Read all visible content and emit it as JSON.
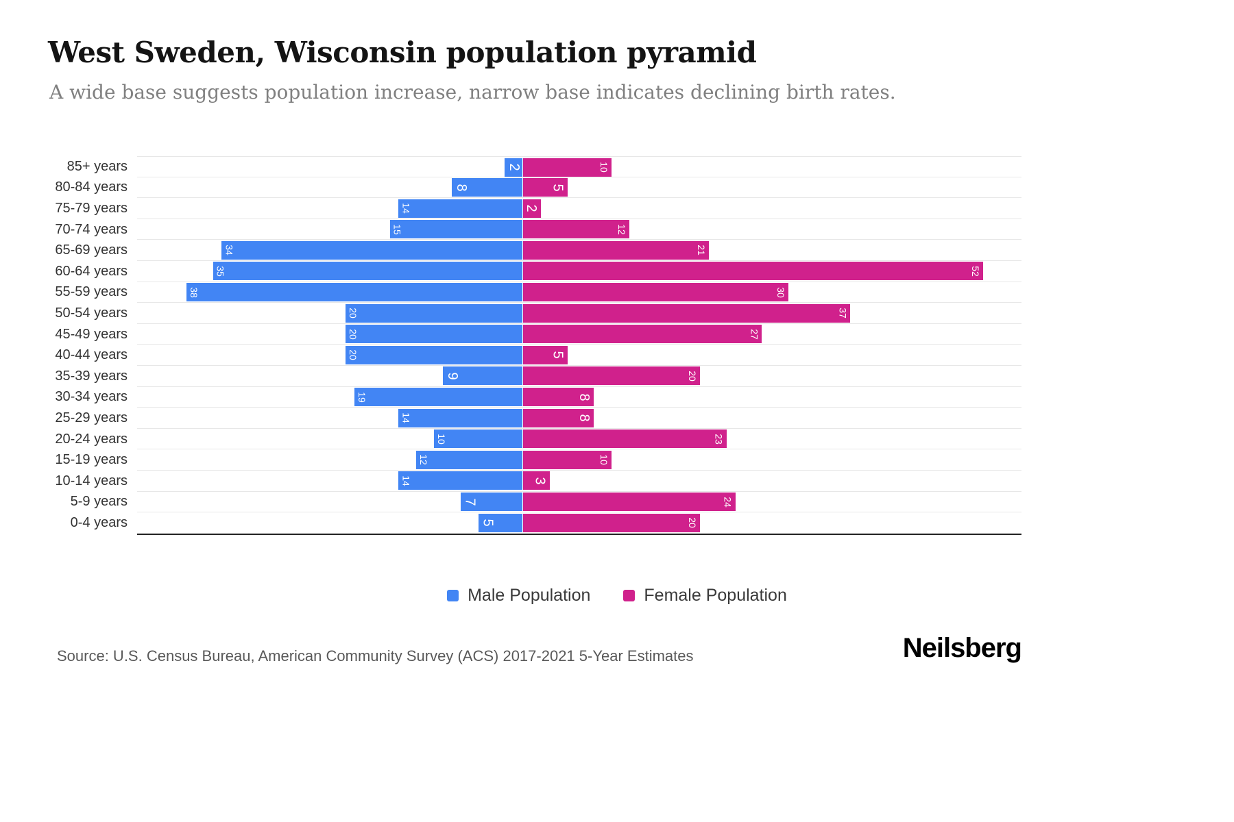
{
  "title": "West Sweden, Wisconsin population pyramid",
  "subtitle": "A wide base suggests population increase, narrow base indicates declining birth rates.",
  "source": "Source: U.S. Census Bureau, American Community Survey (ACS) 2017-2021 5-Year Estimates",
  "logo": "Neilsberg",
  "legend": [
    {
      "label": "Male Population",
      "color": "#4285F4"
    },
    {
      "label": "Female Population",
      "color": "#D0218C"
    }
  ],
  "chart_data": {
    "type": "bar",
    "subtype": "population-pyramid",
    "orientation": "horizontal",
    "categories": [
      "85+ years",
      "80-84 years",
      "75-79 years",
      "70-74 years",
      "65-69 years",
      "60-64 years",
      "55-59 years",
      "50-54 years",
      "45-49 years",
      "40-44 years",
      "35-39 years",
      "30-34 years",
      "25-29 years",
      "20-24 years",
      "15-19 years",
      "10-14 years",
      "5-9 years",
      "0-4 years"
    ],
    "series": [
      {
        "name": "Male Population",
        "color": "#4285F4",
        "side": "left",
        "values": [
          2,
          8,
          14,
          15,
          34,
          35,
          38,
          20,
          20,
          20,
          9,
          19,
          14,
          10,
          12,
          14,
          7,
          5
        ]
      },
      {
        "name": "Female Population",
        "color": "#D0218C",
        "side": "right",
        "values": [
          10,
          5,
          2,
          12,
          21,
          52,
          30,
          37,
          27,
          5,
          20,
          8,
          8,
          23,
          10,
          3,
          24,
          20
        ]
      }
    ],
    "value_labels": "inside-end, rotated 90deg, white",
    "xmax": 52,
    "grid": true,
    "legend_position": "bottom"
  }
}
